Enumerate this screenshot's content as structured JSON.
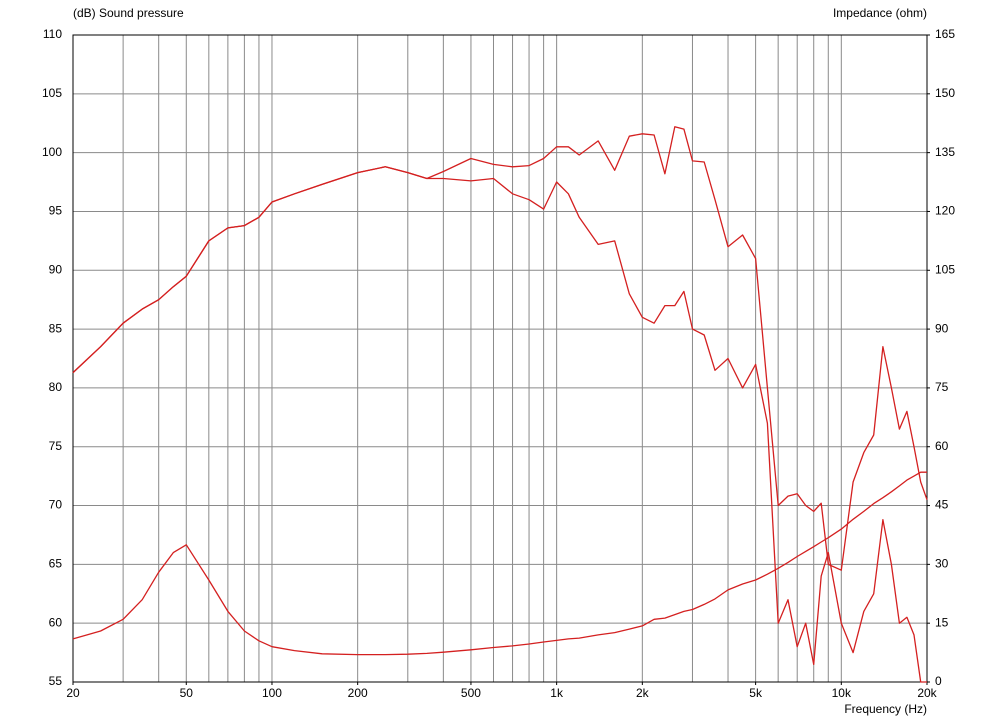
{
  "chart_data": {
    "type": "line",
    "y_label": "(dB)  Sound pressure",
    "y2_label": "Impedance  (ohm)",
    "x_label": "Frequency  (Hz)",
    "x_log": true,
    "x": [
      20,
      25,
      30,
      35,
      40,
      45,
      50,
      60,
      70,
      80,
      90,
      100,
      120,
      150,
      200,
      250,
      300,
      350,
      400,
      500,
      600,
      700,
      800,
      900,
      1000,
      1100,
      1200,
      1400,
      1600,
      1800,
      2000,
      2200,
      2400,
      2600,
      2800,
      3000,
      3300,
      3600,
      4000,
      4500,
      5000,
      5500,
      6000,
      6500,
      7000,
      7500,
      8000,
      8500,
      9000,
      10000,
      11000,
      12000,
      13000,
      14000,
      15000,
      16000,
      17000,
      18000,
      19000,
      20000
    ],
    "series": [
      {
        "color": "#d42020",
        "values": [
          81.3,
          83.5,
          85.5,
          86.7,
          87.5,
          88.6,
          89.5,
          92.5,
          93.6,
          93.8,
          94.5,
          95.8,
          96.5,
          97.3,
          98.3,
          98.8,
          98.3,
          97.8,
          98.4,
          99.5,
          99.0,
          98.8,
          98.9,
          99.5,
          100.5,
          100.5,
          99.8,
          101,
          98.5,
          101.4,
          101.6,
          101.5,
          98.2,
          102.2,
          102,
          99.3,
          99.2,
          96,
          92,
          93,
          91,
          80,
          70,
          70.8,
          71,
          70,
          69.5,
          70.2,
          65,
          64.5,
          72,
          74.5,
          76,
          83.5,
          80,
          76.5,
          78,
          75,
          72,
          70.5
        ]
      },
      {
        "color": "#d42020",
        "values": [
          81.3,
          83.5,
          85.5,
          86.7,
          87.5,
          88.6,
          89.5,
          92.5,
          93.6,
          93.8,
          94.5,
          95.8,
          96.5,
          97.3,
          98.3,
          98.8,
          98.3,
          97.8,
          97.8,
          97.6,
          97.8,
          96.5,
          96,
          95.2,
          97.5,
          96.5,
          94.5,
          92.2,
          92.5,
          88,
          86,
          85.5,
          87,
          87,
          88.2,
          85,
          84.5,
          81.5,
          82.5,
          80,
          82,
          77,
          60,
          62,
          58,
          60,
          56.5,
          64,
          66,
          60,
          57.5,
          61,
          62.5,
          68.8,
          65,
          60,
          60.5,
          59,
          55,
          55
        ]
      },
      {
        "color": "#d42020",
        "axis": "y2",
        "values": [
          11,
          13,
          16,
          21,
          28,
          33,
          35,
          26,
          18,
          13,
          10.5,
          9,
          8,
          7.2,
          7,
          7,
          7.1,
          7.3,
          7.6,
          8.2,
          8.8,
          9.2,
          9.7,
          10.2,
          10.6,
          11,
          11.2,
          12,
          12.6,
          13.5,
          14.3,
          16,
          16.3,
          17.2,
          18,
          18.5,
          19.8,
          21.2,
          23.5,
          25,
          26,
          27.5,
          29,
          30.5,
          32,
          33.3,
          34.5,
          35.7,
          36.8,
          39,
          41.5,
          43.5,
          45.5,
          47,
          48.5,
          50,
          51.5,
          52.5,
          53.5,
          53.5
        ]
      }
    ],
    "xlim": [
      20,
      20000
    ],
    "xticks": [
      20,
      50,
      100,
      200,
      500,
      {
        "value": 1000,
        "label": "1k"
      },
      {
        "value": 2000,
        "label": "2k"
      },
      {
        "value": 5000,
        "label": "5k"
      },
      {
        "value": 10000,
        "label": "10k"
      },
      {
        "value": 20000,
        "label": "20k"
      }
    ],
    "xgrid": [
      20,
      30,
      40,
      50,
      60,
      70,
      80,
      90,
      100,
      200,
      300,
      400,
      500,
      600,
      700,
      800,
      900,
      1000,
      2000,
      3000,
      4000,
      5000,
      6000,
      7000,
      8000,
      9000,
      10000,
      20000
    ],
    "ylim": [
      55,
      110
    ],
    "yticks": [
      55,
      60,
      65,
      70,
      75,
      80,
      85,
      90,
      95,
      100,
      105,
      110
    ],
    "y2lim": [
      0,
      165
    ],
    "y2ticks": [
      0,
      15,
      30,
      45,
      60,
      75,
      90,
      105,
      120,
      135,
      150,
      165
    ],
    "grid": true
  }
}
